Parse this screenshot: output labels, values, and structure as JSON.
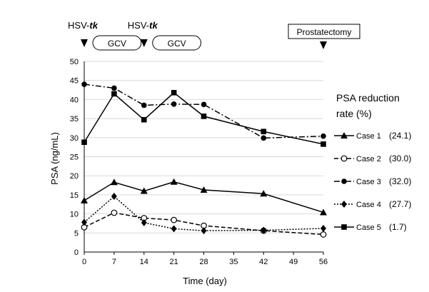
{
  "chart_data": {
    "type": "line",
    "title": "",
    "xlabel": "Time (day)",
    "ylabel": "PSA (ng/mL)",
    "xlim": [
      0,
      56
    ],
    "ylim": [
      0,
      50
    ],
    "x_ticks": [
      0,
      7,
      14,
      21,
      28,
      35,
      42,
      49,
      56
    ],
    "y_ticks": [
      0,
      5,
      10,
      15,
      20,
      25,
      30,
      35,
      40,
      45,
      50
    ],
    "grid": "horizontal",
    "legend": {
      "placement": "right",
      "title_line1": "PSA reduction",
      "title_line2": "rate (%)"
    },
    "series": [
      {
        "name": "Case 1",
        "rate": "(24.1)",
        "marker": "triangle",
        "dash": "solid",
        "x": [
          0,
          7,
          14,
          21,
          28,
          42,
          56
        ],
        "y": [
          13.5,
          18.3,
          16.0,
          18.4,
          16.3,
          15.3,
          10.4
        ]
      },
      {
        "name": "Case 2",
        "rate": "(30.0)",
        "marker": "open-circle",
        "dash": "dashed",
        "x": [
          0,
          7,
          14,
          21,
          28,
          42,
          56
        ],
        "y": [
          6.5,
          10.3,
          8.9,
          8.4,
          6.9,
          5.6,
          4.6
        ]
      },
      {
        "name": "Case 3",
        "rate": "(32.0)",
        "marker": "filled-circle",
        "dash": "dashdot",
        "x": [
          0,
          7,
          14,
          21,
          28,
          42,
          56
        ],
        "y": [
          44.0,
          43.0,
          38.5,
          38.8,
          38.7,
          29.9,
          30.4
        ]
      },
      {
        "name": "Case 4",
        "rate": "(27.7)",
        "marker": "diamond",
        "dash": "dotted",
        "x": [
          0,
          7,
          14,
          21,
          28,
          42,
          56
        ],
        "y": [
          7.8,
          14.6,
          7.7,
          6.1,
          5.6,
          5.7,
          6.2
        ]
      },
      {
        "name": "Case 5",
        "rate": "(1.7)",
        "marker": "square",
        "dash": "solid",
        "x": [
          0,
          7,
          14,
          21,
          28,
          42,
          56
        ],
        "y": [
          28.8,
          41.5,
          34.7,
          41.8,
          35.6,
          31.6,
          28.3
        ]
      }
    ],
    "annotations": {
      "hsv_prefix": "HSV-",
      "hsv_suffix": "tk",
      "hsv_days": [
        0,
        14
      ],
      "gcv_label": "GCV",
      "gcv_periods": [
        [
          0,
          14
        ],
        [
          14,
          28
        ]
      ],
      "surgery_label": "Prostatectomy",
      "surgery_day": 56
    }
  }
}
